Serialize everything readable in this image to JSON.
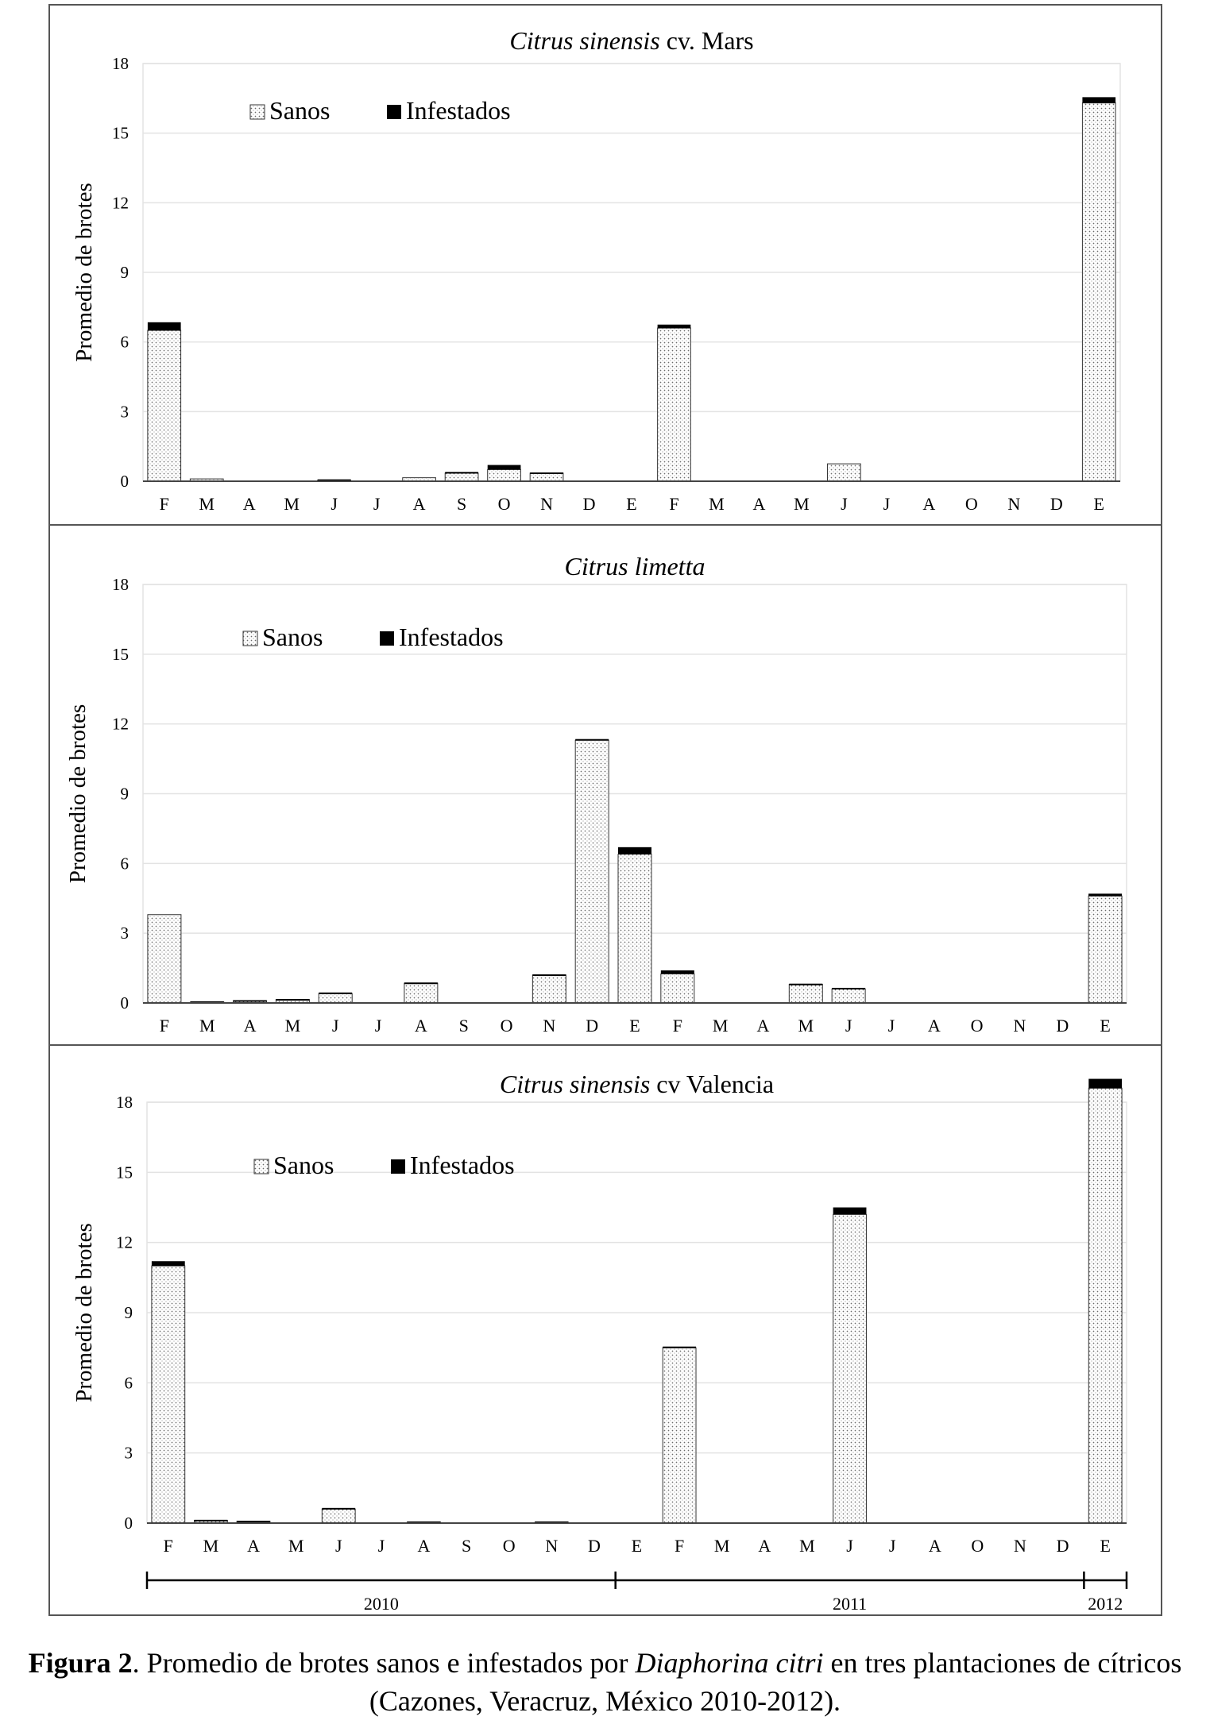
{
  "figure": {
    "caption": {
      "label": "Figura 2",
      "text_a": ". Promedio de brotes sanos e infestados por ",
      "species": "Diaphorina citri",
      "text_b": " en tres plantaciones de cítricos",
      "line2": "(Cazones, Veracruz, México 2010-2012)."
    },
    "years": [
      "2010",
      "2011",
      "2012"
    ]
  },
  "colors": {
    "healthy_fill": "#d9d9d9",
    "infested_fill": "#000000",
    "grid": "#e3e3e3",
    "frame": "#555555"
  },
  "chart_data": [
    {
      "type": "bar",
      "stacked": true,
      "title_italic": "Citrus sinensis",
      "title_rest": " cv. Mars",
      "ylabel": "Promedio de brotes",
      "ylim": [
        0,
        18
      ],
      "yticks": [
        "0",
        "3",
        "6",
        "9",
        "12",
        "15",
        "18"
      ],
      "categories": [
        "F",
        "M",
        "A",
        "M",
        "J",
        "J",
        "A",
        "S",
        "O",
        "N",
        "D",
        "E",
        "F",
        "M",
        "A",
        "M",
        "J",
        "J",
        "A",
        "O",
        "N",
        "D",
        "E"
      ],
      "legend": [
        "Sanos",
        "Infestados"
      ],
      "series": [
        {
          "name": "Sanos",
          "values": [
            6.5,
            0.1,
            0,
            0,
            0.05,
            0,
            0.15,
            0.35,
            0.5,
            0.35,
            0,
            0,
            6.6,
            0,
            0,
            0,
            0.75,
            0,
            0,
            0,
            0,
            0,
            16.3
          ]
        },
        {
          "name": "Infestados",
          "values": [
            0.35,
            0,
            0,
            0,
            0.03,
            0,
            0,
            0.05,
            0.2,
            0.03,
            0,
            0,
            0.15,
            0,
            0,
            0,
            0,
            0,
            0,
            0,
            0,
            0,
            0.25
          ]
        }
      ]
    },
    {
      "type": "bar",
      "stacked": true,
      "title_italic": "Citrus limetta",
      "title_rest": "",
      "ylabel": "Promedio de brotes",
      "ylim": [
        0,
        18
      ],
      "yticks": [
        "0",
        "3",
        "6",
        "9",
        "12",
        "15",
        "18"
      ],
      "categories": [
        "F",
        "M",
        "A",
        "M",
        "J",
        "J",
        "A",
        "S",
        "O",
        "N",
        "D",
        "E",
        "F",
        "M",
        "A",
        "M",
        "J",
        "J",
        "A",
        "O",
        "N",
        "D",
        "E"
      ],
      "legend": [
        "Sanos",
        "Infestados"
      ],
      "series": [
        {
          "name": "Sanos",
          "values": [
            3.8,
            0.05,
            0.1,
            0.15,
            0.4,
            0,
            0.85,
            0,
            0,
            1.2,
            11.3,
            6.4,
            1.25,
            0,
            0,
            0.8,
            0.6,
            0,
            0,
            0,
            0,
            0,
            4.6
          ]
        },
        {
          "name": "Infestados",
          "values": [
            0,
            0.02,
            0.02,
            0.02,
            0.05,
            0,
            0.03,
            0,
            0,
            0.03,
            0.05,
            0.3,
            0.15,
            0,
            0,
            0.03,
            0.05,
            0,
            0,
            0,
            0,
            0,
            0.1
          ]
        }
      ]
    },
    {
      "type": "bar",
      "stacked": true,
      "title_italic": "Citrus sinensis",
      "title_rest": " cv  Valencia",
      "ylabel": "Promedio de brotes",
      "ylim": [
        0,
        18
      ],
      "yticks": [
        "0",
        "3",
        "6",
        "9",
        "12",
        "15",
        "18"
      ],
      "categories": [
        "F",
        "M",
        "A",
        "M",
        "J",
        "J",
        "A",
        "S",
        "O",
        "N",
        "D",
        "E",
        "F",
        "M",
        "A",
        "M",
        "J",
        "J",
        "A",
        "O",
        "N",
        "D",
        "E"
      ],
      "legend": [
        "Sanos",
        "Infestados"
      ],
      "series": [
        {
          "name": "Sanos",
          "values": [
            11.0,
            0.12,
            0.08,
            0,
            0.6,
            0,
            0.05,
            0,
            0,
            0.05,
            0,
            0,
            7.5,
            0,
            0,
            0,
            13.2,
            0,
            0,
            0,
            0,
            0,
            18.6
          ]
        },
        {
          "name": "Infestados",
          "values": [
            0.2,
            0.02,
            0.02,
            0,
            0.05,
            0,
            0.02,
            0,
            0,
            0.02,
            0,
            0,
            0.05,
            0,
            0,
            0,
            0.3,
            0,
            0,
            0,
            0,
            0,
            0.4
          ]
        }
      ]
    }
  ]
}
